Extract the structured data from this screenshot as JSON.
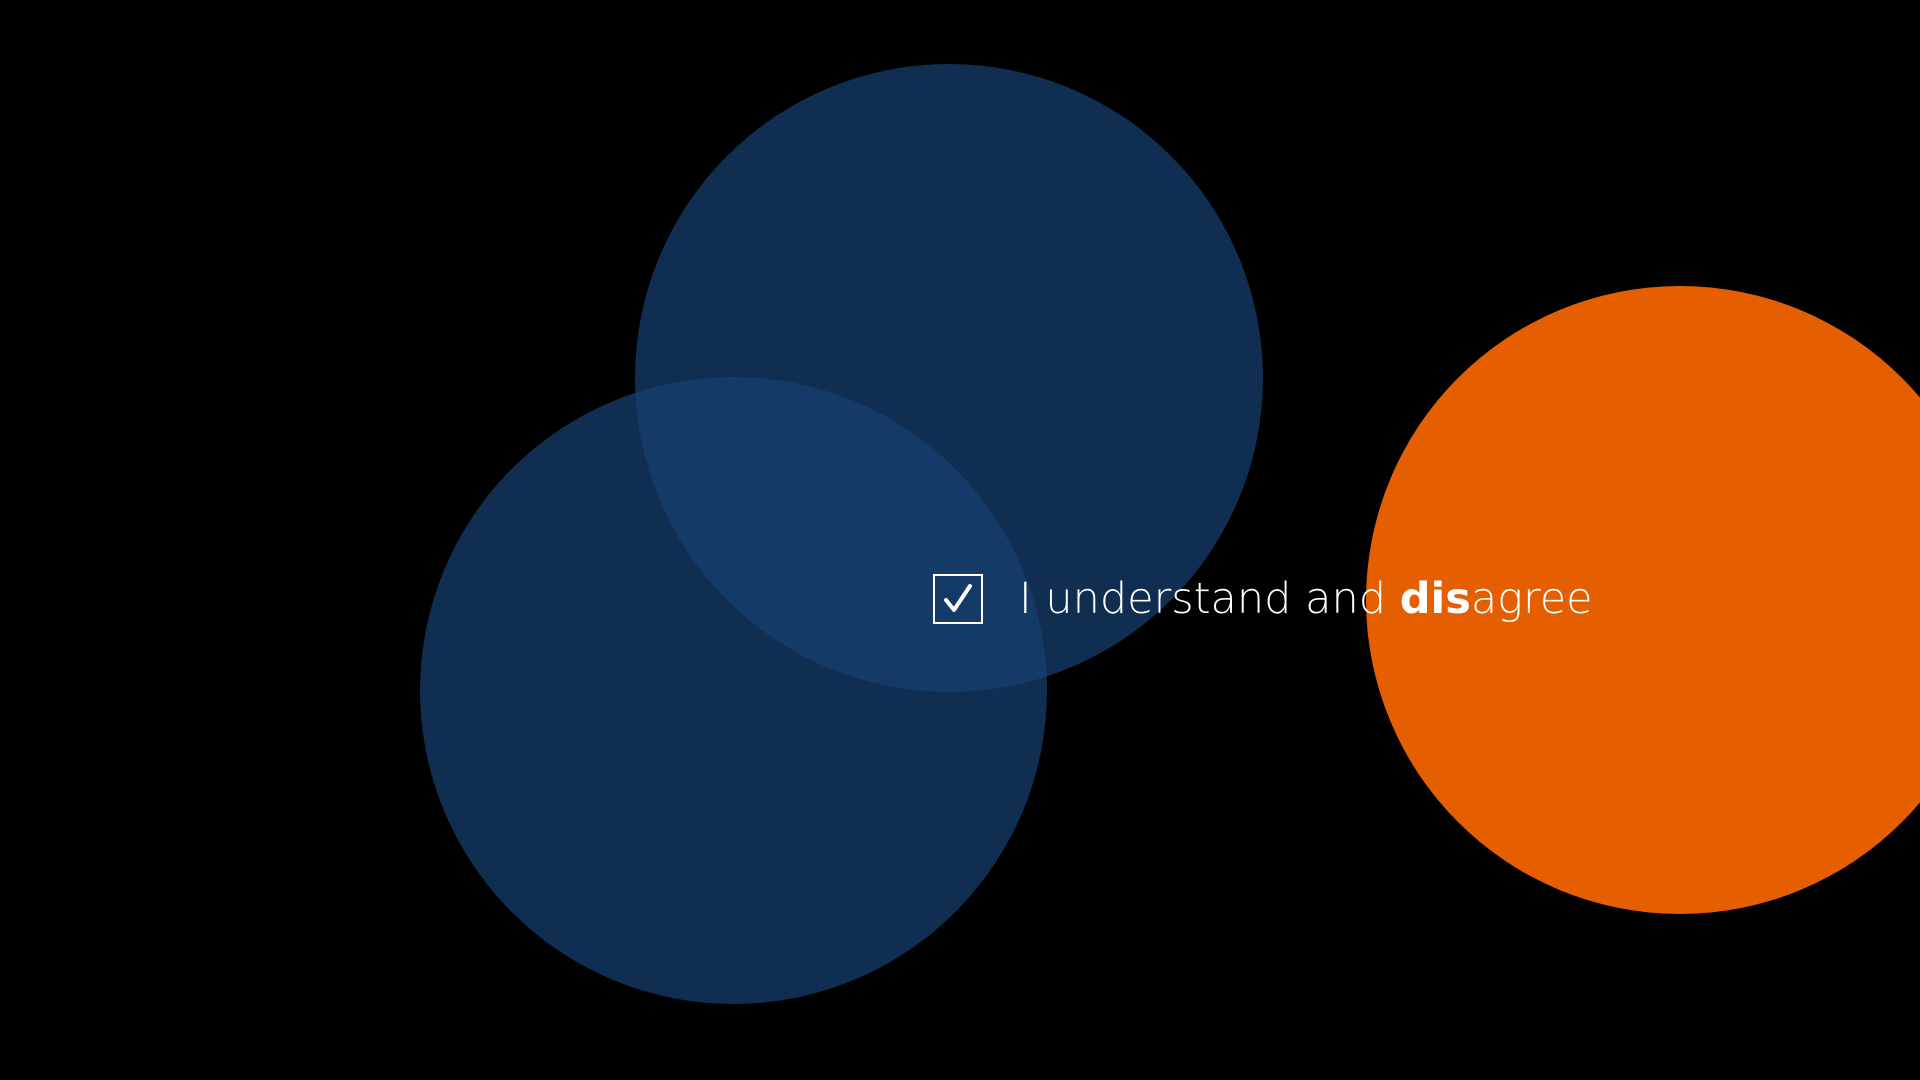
{
  "colors": {
    "background": "#000000",
    "circle_blue": "#164070",
    "circle_orange": "#e55e00",
    "text": "#ffffff"
  },
  "consent": {
    "checked": true,
    "checkbox_icon": "checkmark-icon",
    "label_prefix": "I understand and ",
    "label_bold": "dis",
    "label_suffix": "agree"
  }
}
